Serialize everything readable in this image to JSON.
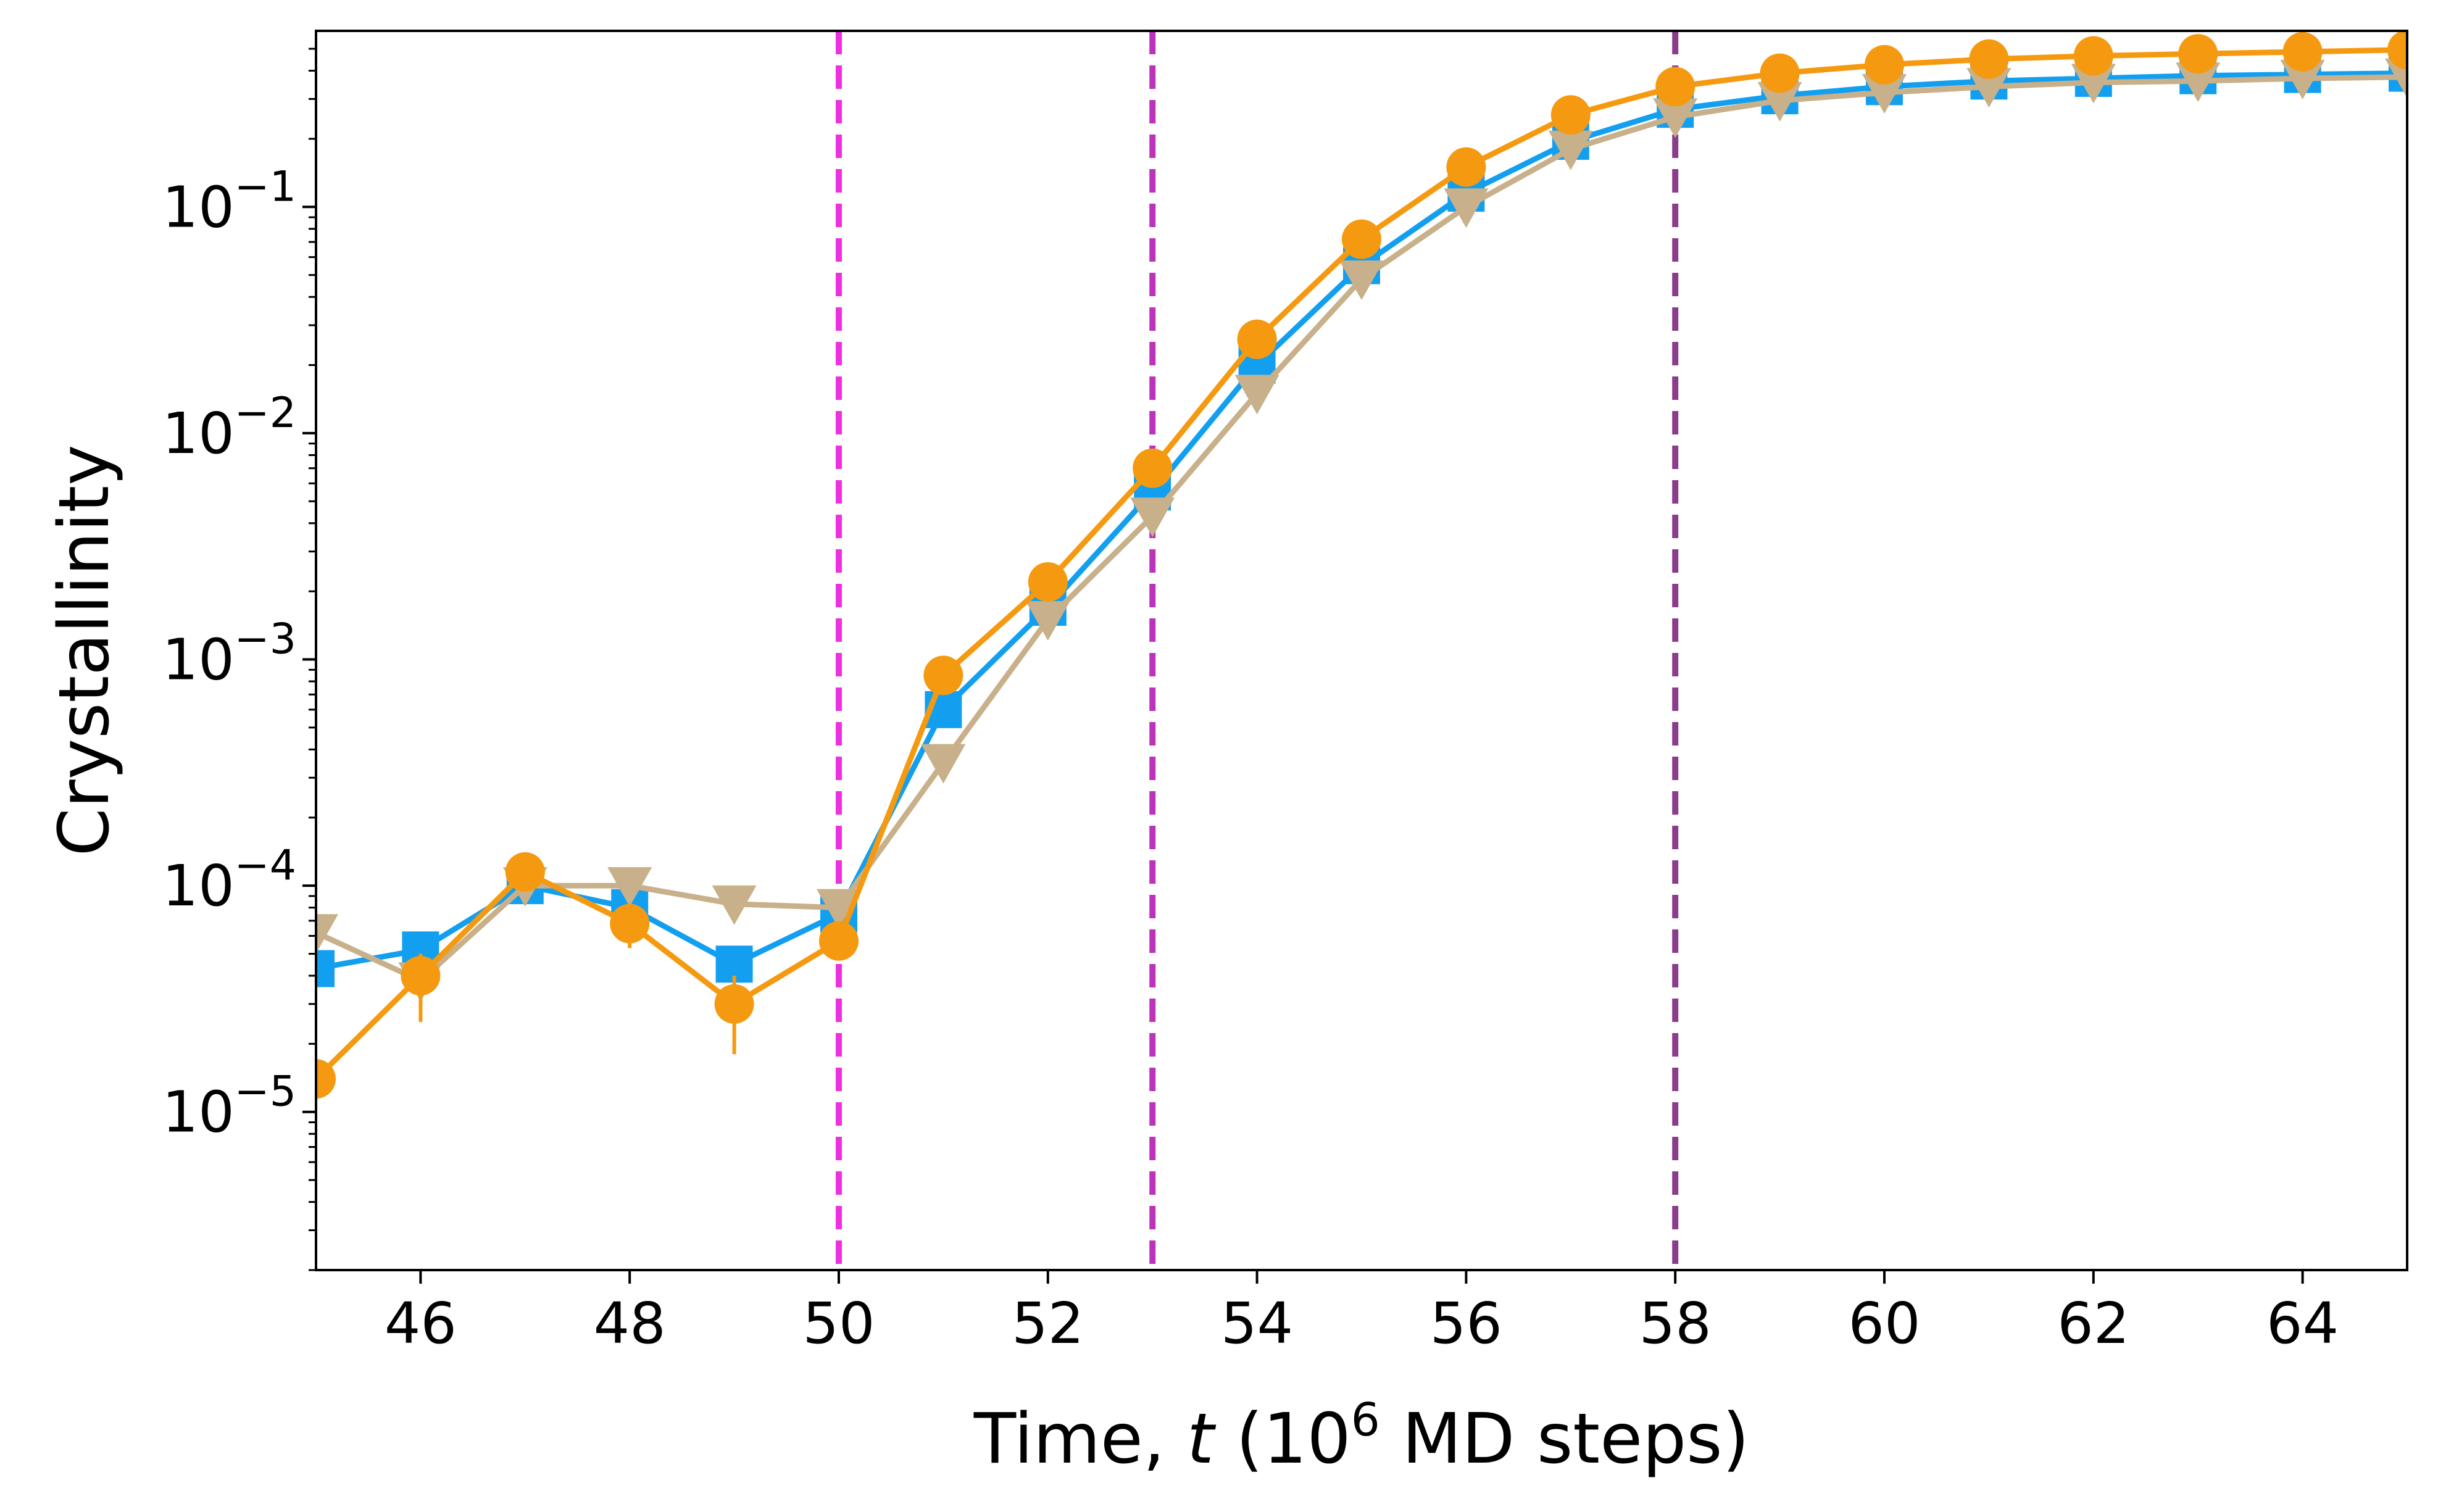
{
  "chart_data": {
    "type": "line",
    "xlabel": {
      "prefix": "Time, ",
      "var": "t",
      "unit_open": " (10",
      "unit_sup": "6",
      "unit_close": " MD steps)"
    },
    "ylabel": "Crystallinity",
    "xlim": [
      45,
      65
    ],
    "ylim": [
      2e-06,
      0.6
    ],
    "yscale": "log",
    "xticks": [
      46,
      48,
      50,
      52,
      54,
      56,
      58,
      60,
      62,
      64
    ],
    "xtick_labels": [
      "46",
      "48",
      "50",
      "52",
      "54",
      "56",
      "58",
      "60",
      "62",
      "64"
    ],
    "yticks": [
      {
        "value": 1e-05,
        "base": "10",
        "exp": "−5"
      },
      {
        "value": 0.0001,
        "base": "10",
        "exp": "−4"
      },
      {
        "value": 0.001,
        "base": "10",
        "exp": "−3"
      },
      {
        "value": 0.01,
        "base": "10",
        "exp": "−2"
      },
      {
        "value": 0.1,
        "base": "10",
        "exp": "−1"
      }
    ],
    "grid": false,
    "vlines": [
      {
        "x": 50,
        "color": "#ee30e0"
      },
      {
        "x": 53,
        "color": "#bb33bb"
      },
      {
        "x": 58,
        "color": "#8a3d8a"
      }
    ],
    "series": [
      {
        "marker": "square",
        "color": "#139ff0",
        "x": [
          45,
          46,
          47,
          48,
          49,
          50,
          51,
          52,
          53,
          54,
          55,
          56,
          57,
          58,
          59,
          60,
          61,
          62,
          63,
          64,
          65
        ],
        "y": [
          4.3e-05,
          5.2e-05,
          0.0001,
          8e-05,
          4.5e-05,
          7.5e-05,
          0.0006,
          0.0017,
          0.0055,
          0.02,
          0.055,
          0.115,
          0.195,
          0.27,
          0.31,
          0.34,
          0.36,
          0.37,
          0.38,
          0.385,
          0.39
        ]
      },
      {
        "marker": "triangle-down",
        "color": "#c8b08a",
        "x": [
          45,
          46,
          47,
          48,
          49,
          50,
          51,
          52,
          53,
          54,
          55,
          56,
          57,
          58,
          59,
          60,
          61,
          62,
          63,
          64,
          65
        ],
        "y": [
          6.2e-05,
          3.8e-05,
          0.0001,
          0.0001,
          8.3e-05,
          8e-05,
          0.00035,
          0.0015,
          0.0043,
          0.015,
          0.048,
          0.1,
          0.18,
          0.25,
          0.295,
          0.32,
          0.34,
          0.355,
          0.36,
          0.37,
          0.375
        ]
      },
      {
        "marker": "circle",
        "color": "#f59a10",
        "x": [
          45,
          46,
          47,
          48,
          49,
          50,
          51,
          52,
          53,
          54,
          55,
          56,
          57,
          58,
          59,
          60,
          61,
          62,
          63,
          64,
          65
        ],
        "y": [
          1.4e-05,
          4e-05,
          0.000115,
          6.8e-05,
          3e-05,
          5.7e-05,
          0.00085,
          0.0022,
          0.007,
          0.026,
          0.072,
          0.15,
          0.255,
          0.34,
          0.39,
          0.425,
          0.45,
          0.465,
          0.475,
          0.485,
          0.495
        ],
        "err_low": [
          0,
          1.5e-05,
          1.5e-05,
          1.5e-05,
          1.2e-05,
          0,
          0,
          0,
          0,
          0,
          0,
          0,
          0,
          0,
          0,
          0,
          0,
          0,
          0,
          0,
          0
        ],
        "err_high": [
          0,
          1e-05,
          1e-05,
          1e-05,
          1e-05,
          0,
          0,
          0,
          0,
          0,
          0,
          0,
          0,
          0,
          0,
          0,
          0,
          0,
          0,
          0,
          0
        ]
      }
    ]
  }
}
